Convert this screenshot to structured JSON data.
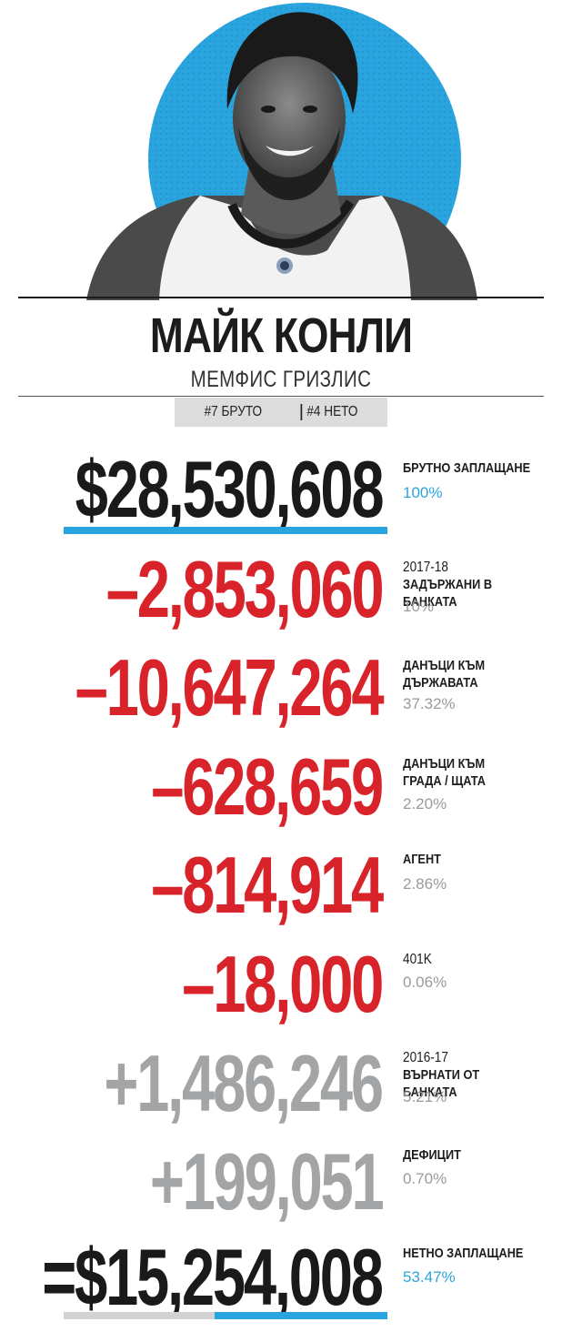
{
  "player": {
    "name": "МАЙК КОНЛИ",
    "team": "МЕМФИС ГРИЗЛИС",
    "rank_gross": "#7 БРУТО",
    "rank_net": "#4 НЕТО"
  },
  "rows": [
    {
      "amount": "$28,530,608",
      "year": "",
      "label": "БРУТНО ЗАПЛАЩАНЕ",
      "pct": "100%"
    },
    {
      "amount": "–2,853,060",
      "year": "2017-18",
      "label": "ЗАДЪРЖАНИ В БАНКАТА",
      "pct": "10%"
    },
    {
      "amount": "–10,647,264",
      "year": "",
      "label": "ДАНЪЦИ КЪМ ДЪРЖАВАТА",
      "pct": "37.32%"
    },
    {
      "amount": "–628,659",
      "year": "",
      "label": "ДАНЪЦИ КЪМ ГРАДА / ЩАТА",
      "pct": "2.20%"
    },
    {
      "amount": "–814,914",
      "year": "",
      "label": "АГЕНТ",
      "pct": "2.86%"
    },
    {
      "amount": "–18,000",
      "year": "",
      "label": "401K",
      "pct": "0.06%"
    },
    {
      "amount": "+1,486,246",
      "year": "2016-17",
      "label": "ВЪРНАТИ ОТ БАНКАТА",
      "pct": "5.21%"
    },
    {
      "amount": "+199,051",
      "year": "",
      "label": "ДЕФИЦИТ",
      "pct": "0.70%"
    },
    {
      "amount": "=$15,254,008",
      "year": "",
      "label": "НЕТНО ЗАПЛАЩАНЕ",
      "pct": "53.47%"
    }
  ],
  "net_share": 0.5347,
  "colors": {
    "accent_blue": "#2aa4de",
    "deduction_red": "#d8232a",
    "addition_gray": "#a2a4a6",
    "text_black": "#1a1a1a"
  },
  "icons": {
    "portrait": "player-photo",
    "logo": "team-logo-icon"
  }
}
